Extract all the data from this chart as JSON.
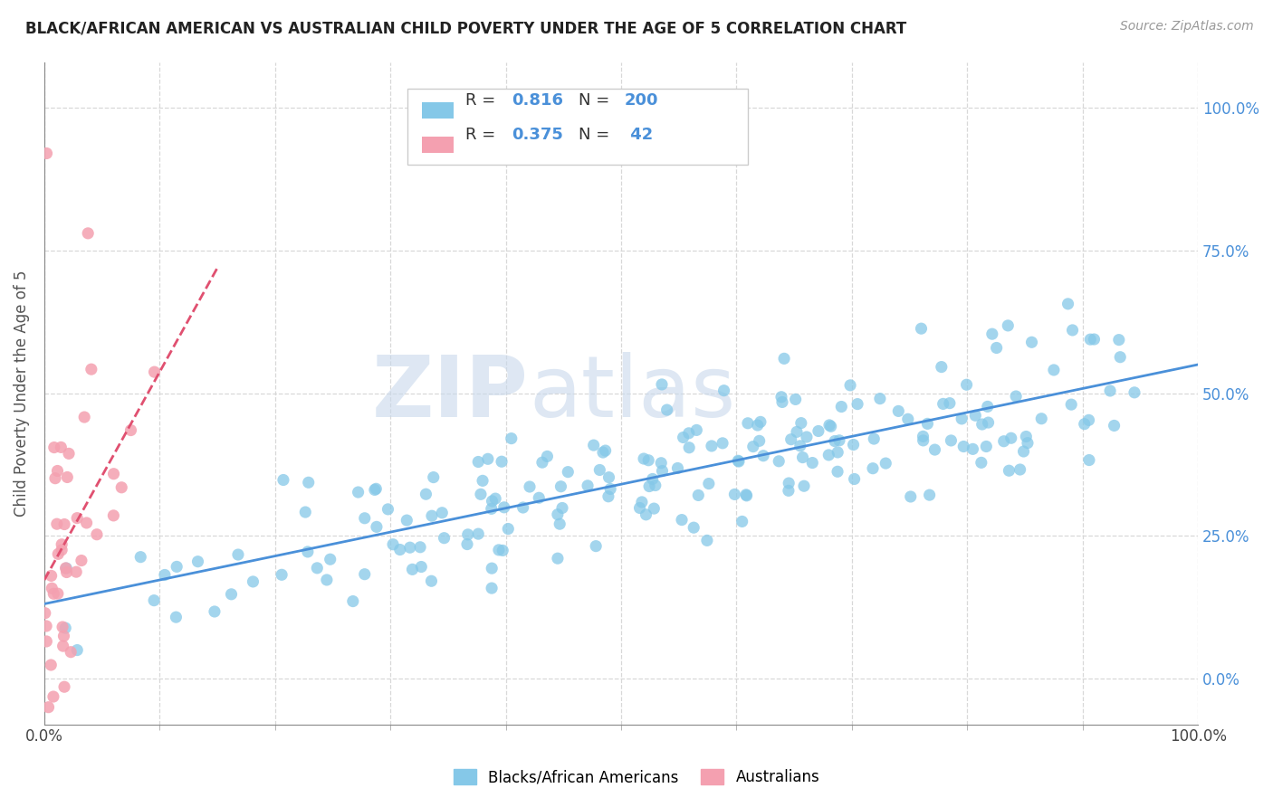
{
  "title": "BLACK/AFRICAN AMERICAN VS AUSTRALIAN CHILD POVERTY UNDER THE AGE OF 5 CORRELATION CHART",
  "source_text": "Source: ZipAtlas.com",
  "ylabel": "Child Poverty Under the Age of 5",
  "watermark_zip": "ZIP",
  "watermark_atlas": "atlas",
  "blue_R": 0.816,
  "blue_N": 200,
  "pink_R": 0.375,
  "pink_N": 42,
  "blue_color": "#85C8E8",
  "blue_line_color": "#4A90D9",
  "pink_color": "#F4A0B0",
  "pink_line_color": "#E05070",
  "background_color": "#ffffff",
  "grid_color": "#d8d8d8",
  "title_color": "#222222",
  "legend_label_blue": "Blacks/African Americans",
  "legend_label_pink": "Australians",
  "r_n_text_color": "#4A90D9",
  "xmin": 0,
  "xmax": 100,
  "ymin": -8,
  "ymax": 108,
  "ytick_vals": [
    0,
    25,
    50,
    75,
    100
  ],
  "ytick_labels": [
    "0.0%",
    "25.0%",
    "50.0%",
    "75.0%",
    "100.0%"
  ],
  "xtick_minor_vals": [
    0,
    10,
    20,
    30,
    40,
    50,
    60,
    70,
    80,
    90,
    100
  ],
  "xtick_label_vals": [
    0,
    100
  ],
  "xtick_label_strs": [
    "0.0%",
    "100.0%"
  ]
}
